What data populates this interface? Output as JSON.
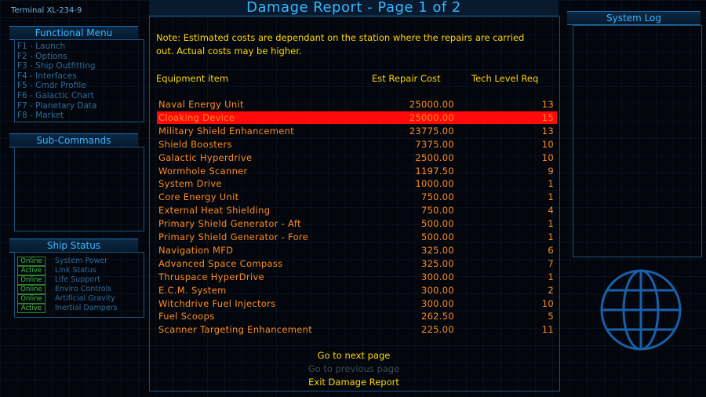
{
  "terminal": "Terminal XL-234-9",
  "functional_menu": {
    "title": "Functional Menu",
    "items": [
      "F1 - Launch",
      "F2 - Options",
      "F3 - Ship Outfitting",
      "F4 - Interfaces",
      "F5 - Cmdr Profile",
      "F6 - Galactic Chart",
      "F7 - Planetary Data",
      "F8 - Market"
    ]
  },
  "sub_commands": {
    "title": "Sub-Commands"
  },
  "ship_status": {
    "title": "Ship Status",
    "rows": [
      {
        "state": "Online",
        "label": "System Power"
      },
      {
        "state": "Active",
        "label": "Link Status"
      },
      {
        "state": "Online",
        "label": "Life Support"
      },
      {
        "state": "Online",
        "label": "Enviro Controls"
      },
      {
        "state": "Online",
        "label": "Artificial Gravity"
      },
      {
        "state": "Active",
        "label": "Inertial Dampers"
      }
    ]
  },
  "report": {
    "title": "Damage Report - Page 1 of 2",
    "note": "Note: Estimated costs are dependant on the station where the repairs are carried out. Actual costs may be higher.",
    "columns": {
      "item": "Equipment item",
      "cost": "Est Repair Cost",
      "tech": "Tech Level Req"
    },
    "rows": [
      {
        "item": "Naval Energy Unit",
        "cost": "25000.00",
        "tech": "13"
      },
      {
        "item": "Cloaking Device",
        "cost": "25000.00",
        "tech": "15"
      },
      {
        "item": "Military Shield Enhancement",
        "cost": "23775.00",
        "tech": "13"
      },
      {
        "item": "Shield Boosters",
        "cost": "7375.00",
        "tech": "10"
      },
      {
        "item": "Galactic Hyperdrive",
        "cost": "2500.00",
        "tech": "10"
      },
      {
        "item": "Wormhole Scanner",
        "cost": "1197.50",
        "tech": "9"
      },
      {
        "item": "System Drive",
        "cost": "1000.00",
        "tech": "1"
      },
      {
        "item": "Core Energy Unit",
        "cost": "750.00",
        "tech": "1"
      },
      {
        "item": "External Heat Shielding",
        "cost": "750.00",
        "tech": "4"
      },
      {
        "item": "Primary Shield Generator - Aft",
        "cost": "500.00",
        "tech": "1"
      },
      {
        "item": "Primary Shield Generator - Fore",
        "cost": "500.00",
        "tech": "1"
      },
      {
        "item": "Navigation MFD",
        "cost": "325.00",
        "tech": "6"
      },
      {
        "item": "Advanced Space Compass",
        "cost": "325.00",
        "tech": "7"
      },
      {
        "item": "Thruspace HyperDrive",
        "cost": "300.00",
        "tech": "1"
      },
      {
        "item": "E.C.M. System",
        "cost": "300.00",
        "tech": "2"
      },
      {
        "item": "Witchdrive Fuel Injectors",
        "cost": "300.00",
        "tech": "10"
      },
      {
        "item": "Fuel Scoops",
        "cost": "262.50",
        "tech": "5"
      },
      {
        "item": "Scanner Targeting Enhancement",
        "cost": "225.00",
        "tech": "11"
      }
    ],
    "selected_index": 1,
    "actions": {
      "next": "Go to next page",
      "prev": "Go to previous page",
      "exit": "Exit Damage Report"
    }
  },
  "system_log": {
    "title": "System Log"
  },
  "colors": {
    "accent": "#39b6ff",
    "text_yellow": "#ffd400",
    "text_orange": "#ff8b1e",
    "selected_row": "#ff0a0a",
    "status_green": "#3fc23f",
    "menu_dim": "#2f6a97"
  },
  "icons": {
    "globe": "globe-icon"
  }
}
